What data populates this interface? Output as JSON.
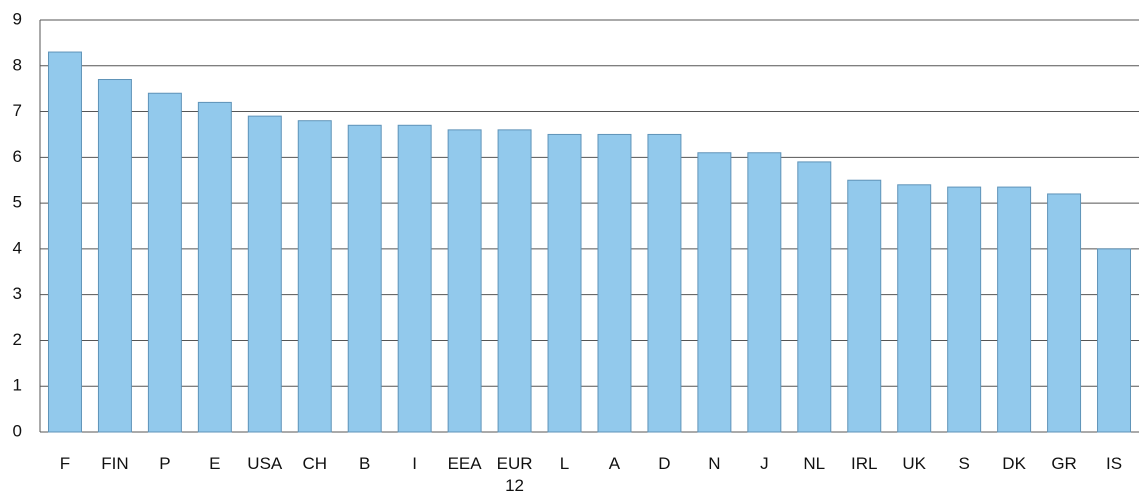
{
  "chart_data": {
    "type": "bar",
    "categories": [
      "F",
      "FIN",
      "P",
      "E",
      "USA",
      "CH",
      "B",
      "I",
      "EEA",
      "EUR 12",
      "L",
      "A",
      "D",
      "N",
      "J",
      "NL",
      "IRL",
      "UK",
      "S",
      "DK",
      "GR",
      "IS"
    ],
    "values": [
      8.3,
      7.7,
      7.4,
      7.2,
      6.9,
      6.8,
      6.7,
      6.7,
      6.6,
      6.6,
      6.5,
      6.5,
      6.5,
      6.1,
      6.1,
      5.9,
      5.5,
      5.4,
      5.35,
      5.35,
      5.2,
      4.0
    ],
    "color": "#92c9ec",
    "ylim": [
      0,
      9
    ],
    "yticks": [
      0,
      1,
      2,
      3,
      4,
      5,
      6,
      7,
      8,
      9
    ],
    "grid": true
  }
}
